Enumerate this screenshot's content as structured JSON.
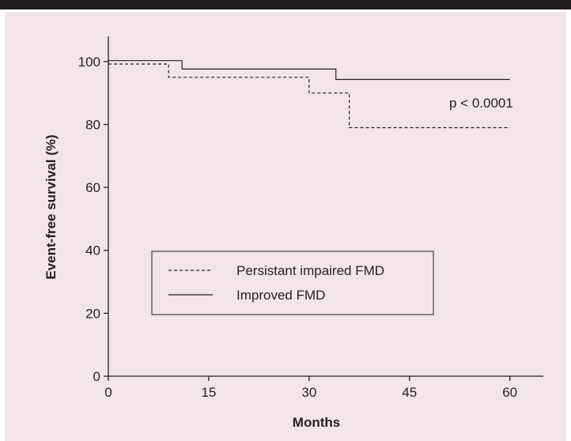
{
  "colors": {
    "top_bar": "#231f20",
    "panel_background": "#f1e4ea",
    "ink": "#231f20"
  },
  "chart_data": {
    "type": "line",
    "title": "",
    "xlabel": "Months",
    "ylabel": "Event-free survival (%)",
    "xlim": [
      0,
      65
    ],
    "ylim": [
      0,
      108
    ],
    "xticks": [
      0,
      15,
      30,
      45,
      60
    ],
    "xtick_labels": [
      "0",
      "15",
      "30",
      "45",
      "60"
    ],
    "yticks": [
      0,
      20,
      40,
      60,
      80,
      100
    ],
    "ytick_labels": [
      "0",
      "20",
      "40",
      "60",
      "80",
      "100"
    ],
    "grid": false,
    "step": true,
    "legend_position": "center-left",
    "annotation": "p < 0.0001",
    "series": [
      {
        "name": "Persistant impaired FMD",
        "line_style": "dashed",
        "points": [
          [
            0,
            99.2
          ],
          [
            9,
            99.2
          ],
          [
            9,
            95
          ],
          [
            30,
            95
          ],
          [
            30,
            90
          ],
          [
            36,
            90
          ],
          [
            36,
            79
          ],
          [
            60,
            79
          ]
        ]
      },
      {
        "name": "Improved FMD",
        "line_style": "solid",
        "points": [
          [
            0,
            100.3
          ],
          [
            11,
            100.3
          ],
          [
            11,
            97.6
          ],
          [
            34,
            97.6
          ],
          [
            34,
            94.3
          ],
          [
            60,
            94.3
          ]
        ]
      }
    ]
  }
}
